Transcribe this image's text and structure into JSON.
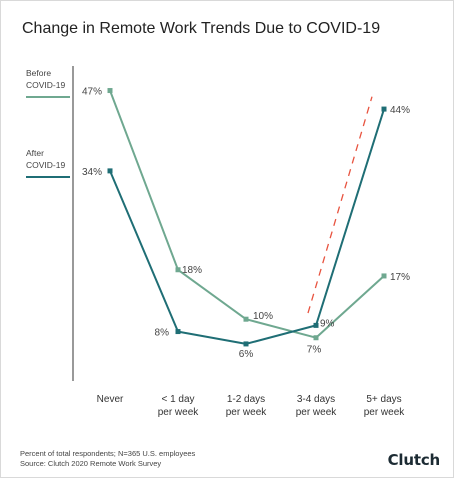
{
  "title": "Change in Remote Work Trends Due to COVID-19",
  "colors": {
    "before": "#6fa890",
    "after": "#1f6e75",
    "trend": "#e8533f",
    "axis": "#333333",
    "text": "#444444"
  },
  "footer": {
    "note": "Percent of total respondents; N=365 U.S. employees",
    "source": "Source: Clutch 2020 Remote Work Survey",
    "brand": "Clutch"
  },
  "chart_data": {
    "type": "line",
    "title": "Change in Remote Work Trends Due to COVID-19",
    "categories": [
      [
        "Never"
      ],
      [
        "< 1 day",
        "per week"
      ],
      [
        "1-2 days",
        "per week"
      ],
      [
        "3-4 days",
        "per week"
      ],
      [
        "5+ days",
        "per week"
      ]
    ],
    "ylim": [
      0,
      50
    ],
    "grid": false,
    "legend_position": "left",
    "series": [
      {
        "name": "Before COVID-19",
        "legend_lines": [
          "Before",
          "COVID-19"
        ],
        "color": "#6fa890",
        "values": [
          47,
          18,
          10,
          7,
          17
        ],
        "labels": [
          "47%",
          "18%",
          "10%",
          "7%",
          "17%"
        ]
      },
      {
        "name": "After COVID-19",
        "legend_lines": [
          "After",
          "COVID-19"
        ],
        "color": "#1f6e75",
        "values": [
          34,
          8,
          6,
          9,
          44
        ],
        "labels": [
          "34%",
          "8%",
          "6%",
          "9%",
          "44%"
        ]
      }
    ],
    "trend_line": {
      "style": "dashed",
      "color": "#e8533f",
      "from": {
        "category": 3,
        "value": 11
      },
      "to": {
        "category": 4,
        "value": 46
      }
    }
  }
}
